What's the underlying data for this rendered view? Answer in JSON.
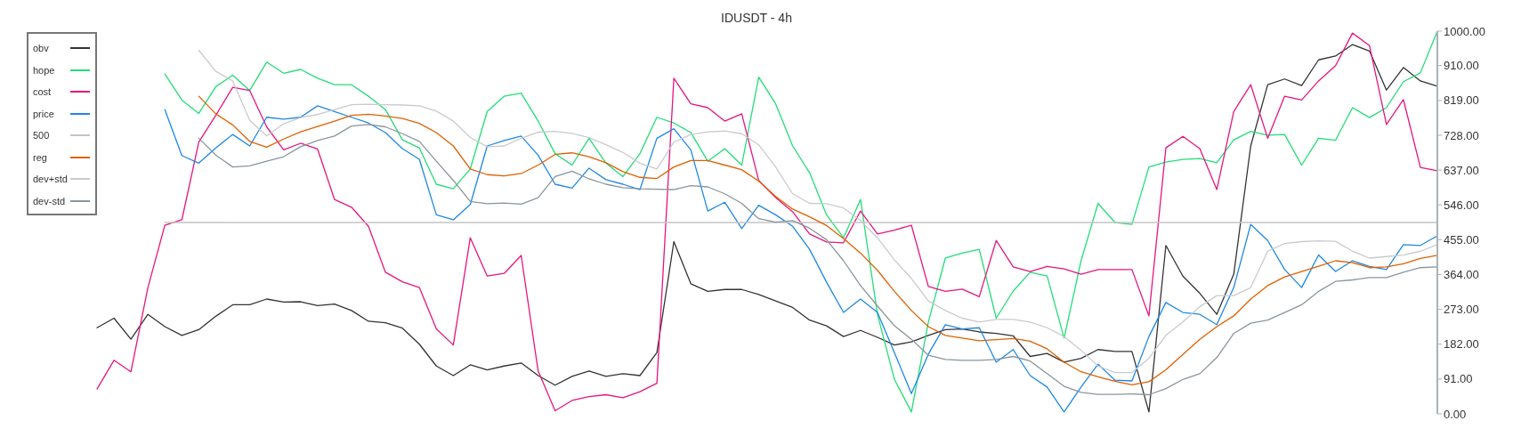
{
  "chart_data": {
    "type": "line",
    "title": "IDUSDT - 4h",
    "categories": [
      null,
      null,
      null,
      null,
      null,
      null,
      null,
      null,
      null,
      null,
      null,
      null,
      null,
      null,
      null,
      null,
      null,
      null,
      null,
      null,
      null,
      null,
      null,
      null,
      null,
      null,
      null,
      null,
      null,
      null,
      null,
      null,
      null,
      null,
      null,
      null,
      null,
      null,
      null,
      null,
      null,
      null,
      null,
      null,
      null,
      null,
      null,
      null,
      null,
      null,
      null,
      null,
      null,
      null,
      null,
      null,
      null,
      null,
      null,
      null,
      null,
      null,
      null,
      null,
      null,
      null,
      null,
      null,
      null,
      null,
      null,
      null,
      null,
      null,
      null,
      null,
      null,
      null,
      null,
      null
    ],
    "series": [
      {
        "name": "obv",
        "color": "#333333",
        "values": [
          225,
          250,
          195,
          260,
          228,
          205,
          220,
          255,
          285,
          285,
          300,
          292,
          293,
          283,
          287,
          270,
          242,
          238,
          224,
          182,
          125,
          100,
          128,
          115,
          125,
          133,
          100,
          75,
          98,
          112,
          98,
          105,
          100,
          160,
          450,
          340,
          320,
          325,
          325,
          312,
          295,
          278,
          245,
          230,
          202,
          218,
          200,
          180,
          188,
          205,
          220,
          222,
          214,
          210,
          204,
          150,
          158,
          135,
          145,
          168,
          163,
          163,
          5,
          440,
          360,
          315,
          260,
          365,
          700,
          860,
          875,
          858,
          925,
          935,
          965,
          948,
          846,
          905,
          870,
          856
        ]
      },
      {
        "name": "hope",
        "color": "#22dd77",
        "values": [
          null,
          null,
          null,
          null,
          888,
          820,
          785,
          855,
          885,
          845,
          919,
          890,
          900,
          877,
          860,
          860,
          830,
          795,
          716,
          695,
          600,
          588,
          640,
          790,
          830,
          838,
          765,
          680,
          650,
          720,
          655,
          620,
          680,
          775,
          760,
          735,
          660,
          693,
          650,
          880,
          810,
          700,
          630,
          520,
          460,
          560,
          260,
          90,
          5,
          240,
          407,
          420,
          430,
          250,
          321,
          370,
          360,
          198,
          400,
          550,
          500,
          495,
          645,
          658,
          665,
          667,
          656,
          716,
          738,
          728,
          730,
          650,
          720,
          715,
          800,
          774,
          800,
          868,
          891,
          1000
        ]
      },
      {
        "name": "cost",
        "color": "#e5167f",
        "values": [
          65,
          140,
          110,
          330,
          493,
          507,
          710,
          780,
          853,
          845,
          750,
          690,
          707,
          692,
          560,
          540,
          490,
          370,
          345,
          330,
          222,
          180,
          460,
          360,
          367,
          414,
          112,
          8,
          35,
          45,
          50,
          42,
          58,
          80,
          877,
          810,
          800,
          765,
          784,
          610,
          565,
          528,
          470,
          449,
          447,
          530,
          470,
          480,
          493,
          333,
          320,
          326,
          306,
          453,
          384,
          372,
          385,
          379,
          365,
          377,
          377,
          377,
          256,
          695,
          725,
          693,
          586,
          790,
          860,
          720,
          830,
          820,
          870,
          910,
          995,
          962,
          756,
          821,
          644,
          635
        ]
      },
      {
        "name": "price",
        "color": "#1e88e5",
        "values": [
          null,
          null,
          null,
          null,
          795,
          675,
          655,
          695,
          730,
          700,
          775,
          770,
          775,
          805,
          790,
          775,
          760,
          735,
          693,
          665,
          520,
          507,
          547,
          700,
          714,
          726,
          676,
          600,
          590,
          642,
          612,
          600,
          586,
          720,
          745,
          690,
          530,
          553,
          484,
          545,
          520,
          490,
          430,
          344,
          265,
          300,
          265,
          160,
          53,
          156,
          233,
          222,
          225,
          135,
          168,
          100,
          70,
          5,
          70,
          130,
          88,
          86,
          202,
          291,
          265,
          260,
          233,
          330,
          495,
          453,
          377,
          330,
          415,
          372,
          400,
          385,
          377,
          442,
          440,
          465
        ]
      },
      {
        "name": "500",
        "color": "#c4c4c4",
        "values": [
          null,
          null,
          null,
          null,
          500,
          500,
          500,
          500,
          500,
          500,
          500,
          500,
          500,
          500,
          500,
          500,
          500,
          500,
          500,
          500,
          500,
          500,
          500,
          500,
          500,
          500,
          500,
          500,
          500,
          500,
          500,
          500,
          500,
          500,
          500,
          500,
          500,
          500,
          500,
          500,
          500,
          500,
          500,
          500,
          500,
          500,
          500,
          500,
          500,
          500,
          500,
          500,
          500,
          500,
          500,
          500,
          500,
          500,
          500,
          500,
          500,
          500,
          500,
          500,
          500,
          500,
          500,
          500,
          500,
          500,
          500,
          500,
          500,
          500,
          500,
          500,
          500,
          500,
          500,
          500
        ]
      },
      {
        "name": "reg",
        "color": "#e06000",
        "values": [
          null,
          null,
          null,
          null,
          null,
          null,
          830,
          784,
          755,
          712,
          697,
          718,
          737,
          751,
          765,
          780,
          783,
          778,
          772,
          759,
          735,
          700,
          640,
          625,
          622,
          628,
          650,
          678,
          682,
          672,
          656,
          633,
          618,
          615,
          645,
          662,
          662,
          650,
          638,
          608,
          568,
          535,
          515,
          492,
          458,
          420,
          375,
          320,
          270,
          228,
          205,
          198,
          191,
          194,
          197,
          190,
          170,
          135,
          110,
          97,
          85,
          76,
          84,
          115,
          155,
          195,
          228,
          256,
          300,
          335,
          358,
          372,
          386,
          400,
          395,
          382,
          384,
          392,
          406,
          414
        ]
      },
      {
        "name": "dev+std",
        "color": "#c8cbcd",
        "values": [
          null,
          null,
          null,
          null,
          null,
          null,
          950,
          895,
          870,
          767,
          726,
          758,
          774,
          782,
          795,
          808,
          809,
          808,
          807,
          805,
          791,
          765,
          722,
          698,
          700,
          720,
          736,
          738,
          733,
          722,
          703,
          683,
          655,
          640,
          710,
          730,
          737,
          739,
          732,
          703,
          645,
          575,
          550,
          549,
          538,
          505,
          460,
          402,
          354,
          295,
          270,
          250,
          240,
          247,
          247,
          240,
          225,
          202,
          166,
          125,
          108,
          108,
          145,
          205,
          240,
          280,
          309,
          309,
          330,
          425,
          445,
          450,
          452,
          451,
          425,
          407,
          411,
          415,
          425,
          442
        ]
      },
      {
        "name": "dev-std",
        "color": "#8a959c",
        "values": [
          null,
          null,
          null,
          null,
          null,
          null,
          720,
          676,
          645,
          648,
          660,
          672,
          698,
          714,
          726,
          752,
          756,
          750,
          732,
          712,
          660,
          610,
          555,
          549,
          551,
          548,
          565,
          620,
          634,
          614,
          600,
          591,
          588,
          587,
          586,
          596,
          593,
          575,
          550,
          510,
          501,
          505,
          485,
          455,
          400,
          335,
          282,
          230,
          195,
          153,
          142,
          140,
          140,
          142,
          150,
          138,
          105,
          72,
          56,
          51,
          51,
          52,
          50,
          66,
          90,
          105,
          147,
          210,
          237,
          245,
          265,
          285,
          320,
          346,
          350,
          356,
          356,
          370,
          382,
          384
        ]
      }
    ],
    "ylim": [
      0,
      1000
    ],
    "yticks": [
      {
        "value": 0,
        "label": "0.00"
      },
      {
        "value": 91,
        "label": "91.00"
      },
      {
        "value": 182,
        "label": "182.00"
      },
      {
        "value": 273,
        "label": "273.00"
      },
      {
        "value": 364,
        "label": "364.00"
      },
      {
        "value": 455,
        "label": "455.00"
      },
      {
        "value": 546,
        "label": "546.00"
      },
      {
        "value": 637,
        "label": "637.00"
      },
      {
        "value": 728,
        "label": "728.00"
      },
      {
        "value": 819,
        "label": "819.00"
      },
      {
        "value": 910,
        "label": "910.00"
      },
      {
        "value": 1000,
        "label": "1000.00"
      }
    ],
    "tick_labels": "y",
    "grid": false,
    "legend": "top left"
  }
}
